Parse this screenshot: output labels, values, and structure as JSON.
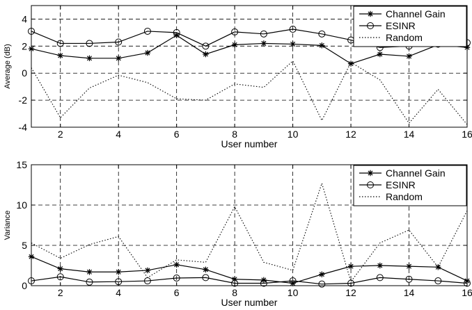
{
  "chart_data": [
    {
      "type": "line",
      "xlabel": "User number",
      "ylabel": "Average (dB)",
      "xlim": [
        1,
        16
      ],
      "ylim": [
        -4,
        5
      ],
      "xticks": [
        2,
        4,
        6,
        8,
        10,
        12,
        14,
        16
      ],
      "yticks": [
        -4,
        -2,
        0,
        2,
        4
      ],
      "grid": true,
      "legend_position": "top-right",
      "x": [
        1,
        2,
        3,
        4,
        5,
        6,
        7,
        8,
        9,
        10,
        11,
        12,
        13,
        14,
        15,
        16
      ],
      "series": [
        {
          "name": "Channel Gain",
          "marker": "star",
          "style": "solid",
          "values": [
            1.8,
            1.3,
            1.1,
            1.1,
            1.5,
            2.8,
            1.4,
            2.1,
            2.2,
            2.15,
            2.05,
            0.7,
            1.4,
            1.25,
            2.1,
            1.9
          ]
        },
        {
          "name": "ESINR",
          "marker": "circle",
          "style": "solid",
          "values": [
            3.1,
            2.2,
            2.2,
            2.3,
            3.1,
            3.0,
            2.0,
            3.05,
            2.9,
            3.25,
            2.9,
            2.45,
            1.9,
            2.0,
            2.15,
            2.25
          ]
        },
        {
          "name": "Random",
          "marker": "none",
          "style": "dotted",
          "values": [
            0.4,
            -3.3,
            -1.1,
            -0.15,
            -0.7,
            -1.9,
            -2.0,
            -0.8,
            -1.05,
            0.9,
            -3.5,
            0.8,
            -0.5,
            -3.7,
            -1.2,
            -3.8
          ]
        }
      ]
    },
    {
      "type": "line",
      "xlabel": "User number",
      "ylabel": "Variance",
      "xlim": [
        1,
        16
      ],
      "ylim": [
        0,
        15
      ],
      "xticks": [
        2,
        4,
        6,
        8,
        10,
        12,
        14,
        16
      ],
      "yticks": [
        0,
        5,
        10,
        15
      ],
      "grid": true,
      "legend_position": "top-right",
      "x": [
        1,
        2,
        3,
        4,
        5,
        6,
        7,
        8,
        9,
        10,
        11,
        12,
        13,
        14,
        15,
        16
      ],
      "series": [
        {
          "name": "Channel Gain",
          "marker": "star",
          "style": "solid",
          "values": [
            3.6,
            2.1,
            1.7,
            1.7,
            1.9,
            2.6,
            2.0,
            0.8,
            0.7,
            0.3,
            1.4,
            2.4,
            2.5,
            2.4,
            2.3,
            0.6
          ]
        },
        {
          "name": "ESINR",
          "marker": "circle",
          "style": "solid",
          "values": [
            0.6,
            1.1,
            0.45,
            0.5,
            0.6,
            0.95,
            1.0,
            0.3,
            0.3,
            0.6,
            0.2,
            0.3,
            1.0,
            0.8,
            0.6,
            0.3
          ]
        },
        {
          "name": "Random",
          "marker": "none",
          "style": "dotted",
          "values": [
            5.3,
            3.4,
            5.1,
            6.1,
            1.0,
            3.2,
            2.9,
            9.8,
            2.9,
            1.9,
            12.7,
            0.5,
            5.3,
            6.9,
            2.3,
            9.3
          ]
        }
      ]
    }
  ]
}
